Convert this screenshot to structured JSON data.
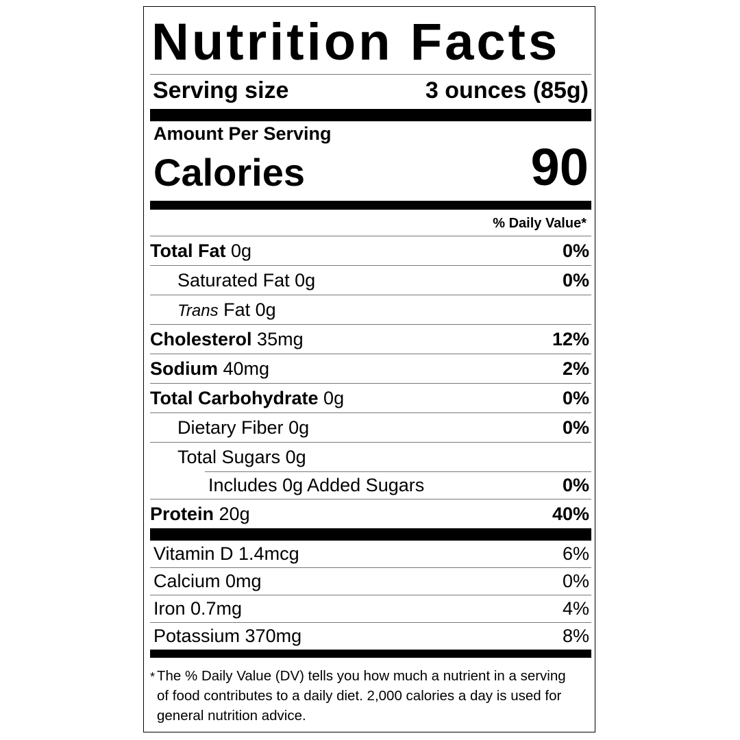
{
  "title": "Nutrition Facts",
  "serving": {
    "label": "Serving size",
    "value": "3 ounces (85g)"
  },
  "amount_per_serving": "Amount Per Serving",
  "calories": {
    "label": "Calories",
    "value": "90"
  },
  "daily_value_header": "% Daily Value*",
  "nutrients": [
    {
      "name": "Total Fat",
      "amount": "0g",
      "dv": "0%"
    },
    {
      "name": "Saturated Fat",
      "amount": "0g",
      "dv": "0%"
    },
    {
      "name": "Trans",
      "suffix": "Fat",
      "amount": "0g",
      "dv": ""
    },
    {
      "name": "Cholesterol",
      "amount": "35mg",
      "dv": "12%"
    },
    {
      "name": "Sodium",
      "amount": "40mg",
      "dv": "2%"
    },
    {
      "name": "Total Carbohydrate",
      "amount": "0g",
      "dv": "0%"
    },
    {
      "name": "Dietary Fiber",
      "amount": "0g",
      "dv": "0%"
    },
    {
      "name": "Total Sugars",
      "amount": "0g",
      "dv": ""
    },
    {
      "name": "Includes 0g Added Sugars",
      "dv": "0%"
    },
    {
      "name": "Protein",
      "amount": "20g",
      "dv": "40%"
    }
  ],
  "vitamins": [
    {
      "label": "Vitamin D 1.4mcg",
      "dv": "6%"
    },
    {
      "label": "Calcium 0mg",
      "dv": "0%"
    },
    {
      "label": "Iron 0.7mg",
      "dv": "4%"
    },
    {
      "label": "Potassium 370mg",
      "dv": "8%"
    }
  ],
  "footnote": {
    "star": "*",
    "text": "The % Daily Value (DV) tells you how much a nutrient in a serving of food contributes to a daily diet. 2,000 calories a day is used for general nutrition advice."
  }
}
